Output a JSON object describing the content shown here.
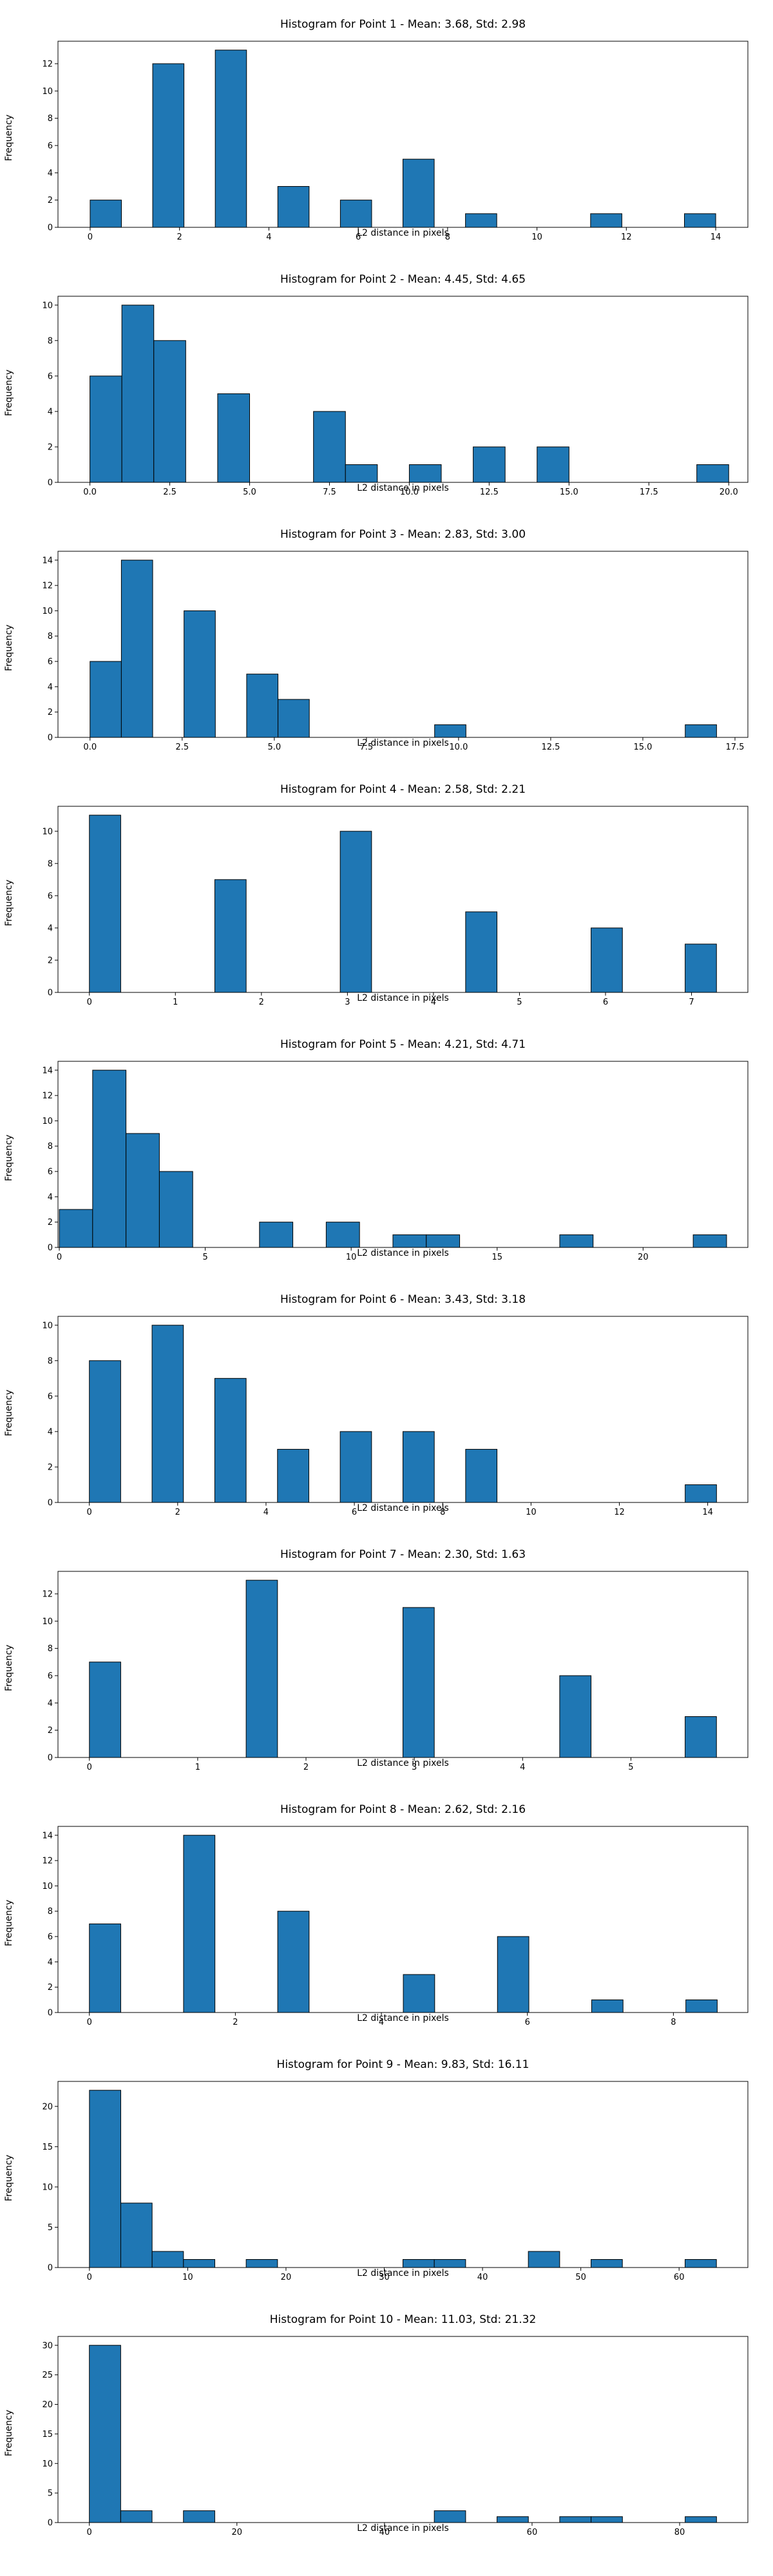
{
  "chart_data": [
    {
      "type": "bar",
      "title": "Histogram for Point 1 - Mean: 3.68, Std: 2.98",
      "xlabel": "L2 distance in pixels",
      "ylabel": "Frequency",
      "xlim": [
        -0.72,
        14.72
      ],
      "ylim": [
        0,
        13.65
      ],
      "xticks": [
        0,
        2,
        4,
        6,
        8,
        10,
        12,
        14
      ],
      "xtick_labels": [
        "0",
        "2",
        "4",
        "6",
        "8",
        "10",
        "12",
        "14"
      ],
      "yticks": [
        0,
        2,
        4,
        6,
        8,
        10,
        12
      ],
      "ytick_labels": [
        "0",
        "2",
        "4",
        "6",
        "8",
        "10",
        "12"
      ],
      "bin_edges": [
        0,
        0.7,
        1.4,
        2.1,
        2.8,
        3.5,
        4.2,
        4.9,
        5.6,
        6.3,
        7.0,
        7.7,
        8.4,
        9.1,
        9.8,
        10.5,
        11.2,
        11.9,
        12.6,
        13.3,
        14.0
      ],
      "counts": [
        2,
        0,
        12,
        0,
        13,
        0,
        3,
        0,
        2,
        0,
        5,
        0,
        1,
        0,
        0,
        0,
        1,
        0,
        0,
        1
      ]
    },
    {
      "type": "bar",
      "title": "Histogram for Point 2 - Mean: 4.45, Std: 4.65",
      "xlabel": "L2 distance in pixels",
      "ylabel": "Frequency",
      "xlim": [
        -1.0,
        20.6
      ],
      "ylim": [
        0,
        10.5
      ],
      "xticks": [
        0,
        2.5,
        5,
        7.5,
        10,
        12.5,
        15,
        17.5,
        20
      ],
      "xtick_labels": [
        "0.0",
        "2.5",
        "5.0",
        "7.5",
        "10.0",
        "12.5",
        "15.0",
        "17.5",
        "20.0"
      ],
      "yticks": [
        0,
        2,
        4,
        6,
        8,
        10
      ],
      "ytick_labels": [
        "0",
        "2",
        "4",
        "6",
        "8",
        "10"
      ],
      "bin_edges": [
        0,
        1,
        2,
        3,
        4,
        5,
        6,
        7,
        8,
        9,
        10,
        11,
        12,
        13,
        14,
        15,
        16,
        17,
        18,
        19,
        20
      ],
      "counts": [
        6,
        10,
        8,
        0,
        5,
        0,
        0,
        4,
        1,
        0,
        1,
        0,
        2,
        0,
        2,
        0,
        0,
        0,
        0,
        1
      ]
    },
    {
      "type": "bar",
      "title": "Histogram for Point 3 - Mean: 2.83, Std: 3.00",
      "xlabel": "L2 distance in pixels",
      "ylabel": "Frequency",
      "xlim": [
        -0.87,
        17.85
      ],
      "ylim": [
        0,
        14.7
      ],
      "xticks": [
        0,
        2.5,
        5,
        7.5,
        10,
        12.5,
        15,
        17.5
      ],
      "xtick_labels": [
        "0.0",
        "2.5",
        "5.0",
        "7.5",
        "10.0",
        "12.5",
        "15.0",
        "17.5"
      ],
      "yticks": [
        0,
        2,
        4,
        6,
        8,
        10,
        12,
        14
      ],
      "ytick_labels": [
        "0",
        "2",
        "4",
        "6",
        "8",
        "10",
        "12",
        "14"
      ],
      "bin_edges": [
        0,
        0.85,
        1.7,
        2.55,
        3.4,
        4.25,
        5.1,
        5.95,
        6.8,
        7.65,
        8.5,
        9.35,
        10.2,
        11.05,
        11.9,
        12.75,
        13.6,
        14.45,
        15.3,
        16.15,
        17.0
      ],
      "counts": [
        6,
        14,
        0,
        10,
        0,
        5,
        3,
        0,
        0,
        0,
        0,
        1,
        0,
        0,
        0,
        0,
        0,
        0,
        0,
        1
      ]
    },
    {
      "type": "bar",
      "title": "Histogram for Point 4 - Mean: 2.58, Std: 2.21",
      "xlabel": "L2 distance in pixels",
      "ylabel": "Frequency",
      "xlim": [
        -0.365,
        7.655
      ],
      "ylim": [
        0,
        11.55
      ],
      "xticks": [
        0,
        1,
        2,
        3,
        4,
        5,
        6,
        7
      ],
      "xtick_labels": [
        "0",
        "1",
        "2",
        "3",
        "4",
        "5",
        "6",
        "7"
      ],
      "yticks": [
        0,
        2,
        4,
        6,
        8,
        10
      ],
      "ytick_labels": [
        "0",
        "2",
        "4",
        "6",
        "8",
        "10"
      ],
      "bin_edges": [
        0,
        0.3645,
        0.729,
        1.0935,
        1.458,
        1.8225,
        2.187,
        2.5515,
        2.916,
        3.2805,
        3.645,
        4.0095,
        4.374,
        4.7385,
        5.103,
        5.4675,
        5.832,
        6.1965,
        6.561,
        6.9255,
        7.29
      ],
      "counts": [
        11,
        0,
        0,
        0,
        7,
        0,
        0,
        0,
        10,
        0,
        0,
        0,
        5,
        0,
        0,
        0,
        4,
        0,
        0,
        3
      ]
    },
    {
      "type": "bar",
      "title": "Histogram for Point 5 - Mean: 4.21, Std: 4.71",
      "xlabel": "L2 distance in pixels",
      "ylabel": "Frequency",
      "xlim": [
        -0.045,
        23.59
      ],
      "ylim": [
        0,
        14.7
      ],
      "xticks": [
        0,
        5,
        10,
        15,
        20
      ],
      "xtick_labels": [
        "0",
        "5",
        "10",
        "15",
        "20"
      ],
      "yticks": [
        0,
        2,
        4,
        6,
        8,
        10,
        12,
        14
      ],
      "ytick_labels": [
        "0",
        "2",
        "4",
        "6",
        "8",
        "10",
        "12",
        "14"
      ],
      "bin_edges": [
        0,
        1.143,
        2.286,
        3.429,
        4.572,
        5.715,
        6.858,
        8.001,
        9.144,
        10.287,
        11.43,
        12.573,
        13.716,
        14.859,
        16.002,
        17.145,
        18.288,
        19.431,
        20.574,
        21.717,
        22.86
      ],
      "counts": [
        3,
        14,
        9,
        6,
        0,
        0,
        2,
        0,
        2,
        0,
        1,
        1,
        0,
        0,
        0,
        1,
        0,
        0,
        0,
        1
      ]
    },
    {
      "type": "bar",
      "title": "Histogram for Point 6 - Mean: 3.43, Std: 3.18",
      "xlabel": "L2 distance in pixels",
      "ylabel": "Frequency",
      "xlim": [
        -0.71,
        14.91
      ],
      "ylim": [
        0,
        10.5
      ],
      "xticks": [
        0,
        2,
        4,
        6,
        8,
        10,
        12,
        14
      ],
      "xtick_labels": [
        "0",
        "2",
        "4",
        "6",
        "8",
        "10",
        "12",
        "14"
      ],
      "yticks": [
        0,
        2,
        4,
        6,
        8,
        10
      ],
      "ytick_labels": [
        "0",
        "2",
        "4",
        "6",
        "8",
        "10"
      ],
      "bin_edges": [
        0,
        0.71,
        1.42,
        2.13,
        2.84,
        3.55,
        4.26,
        4.97,
        5.68,
        6.39,
        7.1,
        7.81,
        8.52,
        9.23,
        9.94,
        10.65,
        11.36,
        12.07,
        12.78,
        13.49,
        14.2
      ],
      "counts": [
        8,
        0,
        10,
        0,
        7,
        0,
        3,
        0,
        4,
        0,
        4,
        0,
        3,
        0,
        0,
        0,
        0,
        0,
        0,
        1
      ]
    },
    {
      "type": "bar",
      "title": "Histogram for Point 7 - Mean: 2.30, Std: 1.63",
      "xlabel": "L2 distance in pixels",
      "ylabel": "Frequency",
      "xlim": [
        -0.29,
        6.08
      ],
      "ylim": [
        0,
        13.65
      ],
      "xticks": [
        0,
        1,
        2,
        3,
        4,
        5
      ],
      "xtick_labels": [
        "0",
        "1",
        "2",
        "3",
        "4",
        "5"
      ],
      "yticks": [
        0,
        2,
        4,
        6,
        8,
        10,
        12
      ],
      "ytick_labels": [
        "0",
        "2",
        "4",
        "6",
        "8",
        "10",
        "12"
      ],
      "bin_edges": [
        0,
        0.2895,
        0.579,
        0.8685,
        1.158,
        1.4475,
        1.737,
        2.0265,
        2.316,
        2.6055,
        2.895,
        3.1845,
        3.474,
        3.7635,
        4.053,
        4.3425,
        4.632,
        4.9215,
        5.211,
        5.5005,
        5.79
      ],
      "counts": [
        7,
        0,
        0,
        0,
        0,
        13,
        0,
        0,
        0,
        0,
        11,
        0,
        0,
        0,
        0,
        6,
        0,
        0,
        0,
        3
      ]
    },
    {
      "type": "bar",
      "title": "Histogram for Point 8 - Mean: 2.62, Std: 2.16",
      "xlabel": "L2 distance in pixels",
      "ylabel": "Frequency",
      "xlim": [
        -0.43,
        9.02
      ],
      "ylim": [
        0,
        14.7
      ],
      "xticks": [
        0,
        2,
        4,
        6,
        8
      ],
      "xtick_labels": [
        "0",
        "2",
        "4",
        "6",
        "8"
      ],
      "yticks": [
        0,
        2,
        4,
        6,
        8,
        10,
        12,
        14
      ],
      "ytick_labels": [
        "0",
        "2",
        "4",
        "6",
        "8",
        "10",
        "12",
        "14"
      ],
      "bin_edges": [
        0,
        0.43,
        0.86,
        1.29,
        1.72,
        2.15,
        2.58,
        3.01,
        3.44,
        3.87,
        4.3,
        4.73,
        5.16,
        5.59,
        6.02,
        6.45,
        6.88,
        7.31,
        7.74,
        8.17,
        8.6
      ],
      "counts": [
        7,
        0,
        0,
        14,
        0,
        0,
        8,
        0,
        0,
        0,
        3,
        0,
        0,
        6,
        0,
        0,
        1,
        0,
        0,
        1
      ]
    },
    {
      "type": "bar",
      "title": "Histogram for Point 9 - Mean: 9.83, Std: 16.11",
      "xlabel": "L2 distance in pixels",
      "ylabel": "Frequency",
      "xlim": [
        -3.2,
        67.0
      ],
      "ylim": [
        0,
        23.1
      ],
      "xticks": [
        0,
        10,
        20,
        30,
        40,
        50,
        60
      ],
      "xtick_labels": [
        "0",
        "10",
        "20",
        "30",
        "40",
        "50",
        "60"
      ],
      "yticks": [
        0,
        5,
        10,
        15,
        20
      ],
      "ytick_labels": [
        "0",
        "5",
        "10",
        "15",
        "20"
      ],
      "bin_edges": [
        0,
        3.19,
        6.38,
        9.57,
        12.76,
        15.95,
        19.14,
        22.33,
        25.52,
        28.71,
        31.9,
        35.09,
        38.28,
        41.47,
        44.66,
        47.85,
        51.04,
        54.23,
        57.42,
        60.61,
        63.8
      ],
      "counts": [
        22,
        8,
        2,
        1,
        0,
        1,
        0,
        0,
        0,
        0,
        1,
        1,
        0,
        0,
        2,
        0,
        1,
        0,
        0,
        1
      ]
    },
    {
      "type": "bar",
      "title": "Histogram for Point 10 - Mean: 11.03, Std: 21.32",
      "xlabel": "L2 distance in pixels",
      "ylabel": "Frequency",
      "xlim": [
        -4.25,
        89.25
      ],
      "ylim": [
        0,
        31.5
      ],
      "xticks": [
        0,
        20,
        40,
        60,
        80
      ],
      "xtick_labels": [
        "0",
        "20",
        "40",
        "60",
        "80"
      ],
      "yticks": [
        0,
        5,
        10,
        15,
        20,
        25,
        30
      ],
      "ytick_labels": [
        "0",
        "5",
        "10",
        "15",
        "20",
        "25",
        "30"
      ],
      "bin_edges": [
        0,
        4.25,
        8.5,
        12.75,
        17.0,
        21.25,
        25.5,
        29.75,
        34.0,
        38.25,
        42.5,
        46.75,
        51.0,
        55.25,
        59.5,
        63.75,
        68.0,
        72.25,
        76.5,
        80.75,
        85.0
      ],
      "counts": [
        30,
        2,
        0,
        2,
        0,
        0,
        0,
        0,
        0,
        0,
        0,
        2,
        0,
        1,
        0,
        1,
        1,
        0,
        0,
        1
      ]
    }
  ],
  "colors": {
    "bar_fill": "#1f77b4",
    "bar_edge": "#000000",
    "axis": "#000000"
  }
}
